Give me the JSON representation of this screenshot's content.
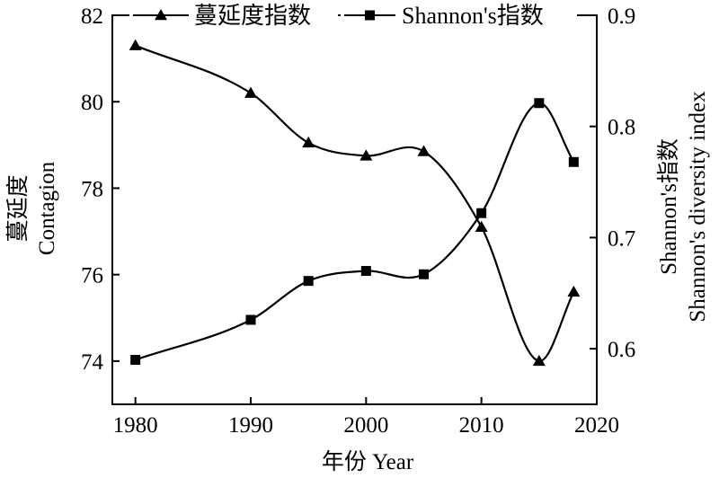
{
  "chart_data": {
    "type": "line",
    "x": [
      1980,
      1990,
      1995,
      2000,
      2005,
      2010,
      2015,
      2018
    ],
    "series": [
      {
        "name": "蔓延度指数",
        "axis": "left",
        "marker": "triangle",
        "values": [
          81.3,
          80.2,
          79.05,
          78.75,
          78.85,
          77.1,
          74.0,
          75.6
        ]
      },
      {
        "name": "Shannon's指数",
        "axis": "right",
        "marker": "square",
        "values": [
          0.59,
          0.626,
          0.661,
          0.67,
          0.667,
          0.722,
          0.821,
          0.768
        ]
      }
    ],
    "xlabel": "年份 Year",
    "ylabel_left": [
      "蔓延度",
      "Contagion"
    ],
    "ylabel_right": [
      "Shannon's指数",
      "Shannon's diversity index"
    ],
    "xlim": [
      1978,
      2020
    ],
    "ylim_left": [
      73,
      82
    ],
    "ylim_right": [
      0.55,
      0.9
    ],
    "xticks": [
      1980,
      1990,
      2000,
      2010,
      2020
    ],
    "yticks_left": [
      74,
      76,
      78,
      80,
      82
    ],
    "yticks_right": [
      0.6,
      0.7,
      0.8,
      0.9
    ],
    "grid": false,
    "legend_position": "top"
  }
}
